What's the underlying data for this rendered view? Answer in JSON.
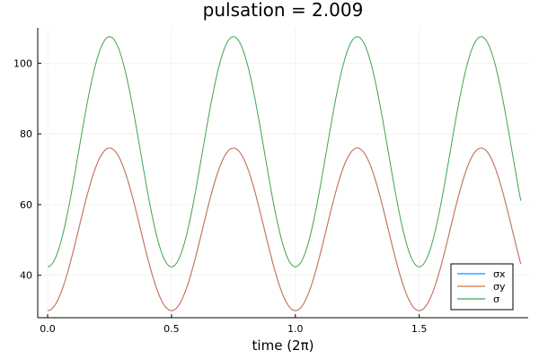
{
  "chart_data": {
    "type": "line",
    "title": "pulsation = 2.009",
    "xlabel": "time (2π)",
    "ylabel": "",
    "xlim": [
      -0.04,
      1.94
    ],
    "ylim": [
      28,
      110
    ],
    "x_ticks": [
      0.0,
      0.5,
      1.0,
      1.5
    ],
    "x_tick_labels": [
      "0.0",
      "0.5",
      "1.0",
      "1.5"
    ],
    "y_ticks": [
      40,
      60,
      80,
      100
    ],
    "y_tick_labels": [
      "40",
      "60",
      "80",
      "100"
    ],
    "grid": true,
    "legend_position": "bottom-right",
    "x_start": 0.0,
    "x_end": 1.91,
    "series": [
      {
        "name": "σx",
        "color": "#009AFA",
        "x": [
          0.0,
          0.125,
          0.25,
          0.375,
          0.5,
          0.625,
          0.75,
          0.875,
          1.0,
          1.125,
          1.25,
          1.375,
          1.5,
          1.625,
          1.75,
          1.875,
          1.91
        ],
        "y": [
          30.0,
          53.0,
          76.0,
          53.0,
          30.0,
          53.0,
          76.0,
          53.0,
          30.0,
          53.0,
          76.0,
          53.0,
          30.0,
          53.0,
          76.0,
          53.0,
          47.0
        ]
      },
      {
        "name": "σy",
        "color": "#E26F46",
        "x": [
          0.0,
          0.125,
          0.25,
          0.375,
          0.5,
          0.625,
          0.75,
          0.875,
          1.0,
          1.125,
          1.25,
          1.375,
          1.5,
          1.625,
          1.75,
          1.875,
          1.91
        ],
        "y": [
          30.0,
          53.0,
          76.0,
          53.0,
          30.0,
          53.0,
          76.0,
          53.0,
          30.0,
          53.0,
          76.0,
          53.0,
          30.0,
          53.0,
          76.0,
          53.0,
          47.0
        ]
      },
      {
        "name": "σ",
        "color": "#3DA44D",
        "x": [
          0.0,
          0.125,
          0.25,
          0.375,
          0.5,
          0.625,
          0.75,
          0.875,
          1.0,
          1.125,
          1.25,
          1.375,
          1.5,
          1.625,
          1.75,
          1.875,
          1.91
        ],
        "y": [
          42.4,
          75.0,
          107.5,
          75.0,
          42.4,
          75.0,
          107.5,
          75.0,
          42.4,
          75.0,
          107.5,
          75.0,
          42.4,
          75.0,
          107.5,
          75.0,
          66.4
        ]
      }
    ]
  }
}
